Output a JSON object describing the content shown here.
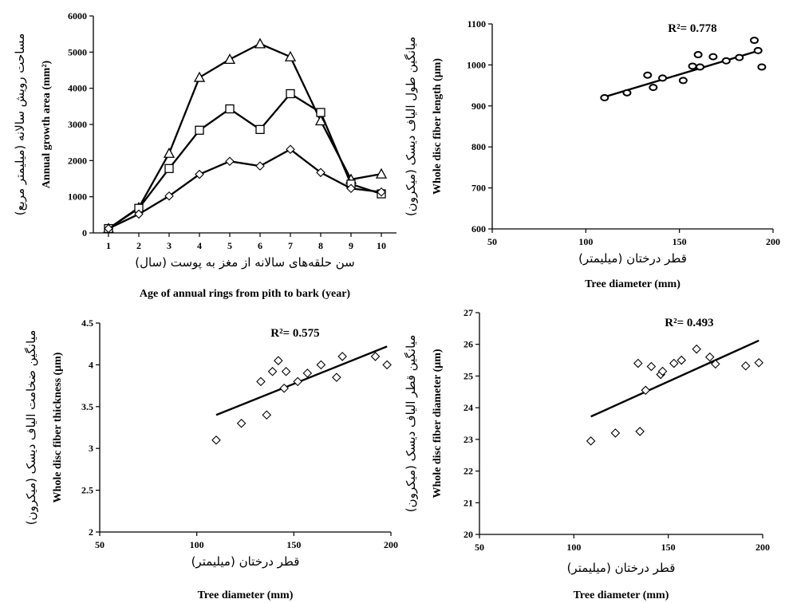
{
  "chart_data": [
    {
      "type": "line",
      "xlabel_fa": "سن حلقه‌های سالانه از مغز به پوست (سال)",
      "xlabel": "Age of annual rings from pith to bark (year)",
      "ylabel_fa": "مساحت رویش سالانه (میلیمتر مربع)",
      "ylabel": "Annual growth area (mm²)",
      "x": [
        1,
        2,
        3,
        4,
        5,
        6,
        7,
        8,
        9,
        10
      ],
      "xlim": [
        0.5,
        10.5
      ],
      "ylim": [
        0,
        6000
      ],
      "yticks": [
        0,
        1000,
        2000,
        3000,
        4000,
        5000,
        6000
      ],
      "series": [
        {
          "marker": "triangle",
          "values": [
            120,
            700,
            2200,
            4300,
            4800,
            5230,
            4870,
            3100,
            1480,
            1630
          ]
        },
        {
          "marker": "square",
          "values": [
            120,
            680,
            1780,
            2840,
            3430,
            2860,
            3850,
            3330,
            1350,
            1080
          ]
        },
        {
          "marker": "diamond",
          "values": [
            120,
            520,
            1020,
            1620,
            1980,
            1850,
            2310,
            1670,
            1230,
            1130
          ]
        }
      ]
    },
    {
      "type": "scatter",
      "r2": "R²= 0.778",
      "xlabel_fa": "قطر درختان (میلیمتر)",
      "xlabel": "Tree diameter (mm)",
      "ylabel_fa": "میانگین طول الیاف دیسک (میکرون)",
      "ylabel": "Whole disc fiber length (μm)",
      "xlim": [
        50,
        200
      ],
      "xticks": [
        50,
        100,
        150,
        200
      ],
      "ylim": [
        600,
        1100
      ],
      "yticks": [
        600,
        700,
        800,
        900,
        1000,
        1100
      ],
      "points": [
        [
          110,
          920
        ],
        [
          122,
          932
        ],
        [
          133,
          975
        ],
        [
          136,
          945
        ],
        [
          141,
          968
        ],
        [
          152,
          962
        ],
        [
          157,
          997
        ],
        [
          160,
          1025
        ],
        [
          161,
          995
        ],
        [
          168,
          1020
        ],
        [
          175,
          1010
        ],
        [
          182,
          1018
        ],
        [
          190,
          1060
        ],
        [
          192,
          1035
        ],
        [
          194,
          995
        ]
      ],
      "trend": [
        [
          110,
          922
        ],
        [
          194,
          1037
        ]
      ]
    },
    {
      "type": "scatter",
      "r2": "R²= 0.575",
      "xlabel_fa": "قطر درختان (میلیمتر)",
      "xlabel": "Tree diameter (mm)",
      "ylabel_fa": "میانگین ضخامت الیاف دیسک (میکرون)",
      "ylabel": "Whole disc fiber thickness (μm)",
      "xlim": [
        50,
        200
      ],
      "xticks": [
        50,
        100,
        150,
        200
      ],
      "ylim": [
        2,
        4.5
      ],
      "yticks": [
        2,
        2.5,
        3,
        3.5,
        4,
        4.5
      ],
      "ytick_labels": [
        "2",
        "2.5",
        "3",
        "3.5",
        "4",
        "4.5"
      ],
      "points": [
        [
          110,
          3.1
        ],
        [
          123,
          3.3
        ],
        [
          133,
          3.8
        ],
        [
          136,
          3.4
        ],
        [
          139,
          3.92
        ],
        [
          142,
          4.05
        ],
        [
          145,
          3.72
        ],
        [
          146,
          3.92
        ],
        [
          152,
          3.8
        ],
        [
          157,
          3.9
        ],
        [
          164,
          4.0
        ],
        [
          172,
          3.85
        ],
        [
          175,
          4.1
        ],
        [
          192,
          4.1
        ],
        [
          198,
          4.0
        ]
      ],
      "trend": [
        [
          110,
          3.4
        ],
        [
          198,
          4.22
        ]
      ]
    },
    {
      "type": "scatter",
      "r2": "R²= 0.493",
      "xlabel_fa": "قطر درختان (میلیمتر)",
      "xlabel": "Tree diameter (mm)",
      "ylabel_fa": "میانگین قطر الیاف دیسک (میکرون)",
      "ylabel": "Whole disc fiber diameter (μm)",
      "xlim": [
        50,
        200
      ],
      "xticks": [
        50,
        100,
        150,
        200
      ],
      "ylim": [
        20,
        27
      ],
      "yticks": [
        20,
        21,
        22,
        23,
        24,
        25,
        26,
        27
      ],
      "points": [
        [
          109,
          22.95
        ],
        [
          122,
          23.2
        ],
        [
          134,
          25.4
        ],
        [
          135,
          23.25
        ],
        [
          138,
          24.55
        ],
        [
          141,
          25.3
        ],
        [
          146,
          25.05
        ],
        [
          147,
          25.15
        ],
        [
          153,
          25.4
        ],
        [
          157,
          25.5
        ],
        [
          165,
          25.85
        ],
        [
          172,
          25.6
        ],
        [
          175,
          25.38
        ],
        [
          191,
          25.32
        ],
        [
          198,
          25.42
        ]
      ],
      "trend": [
        [
          109,
          23.72
        ],
        [
          198,
          26.12
        ]
      ]
    }
  ]
}
